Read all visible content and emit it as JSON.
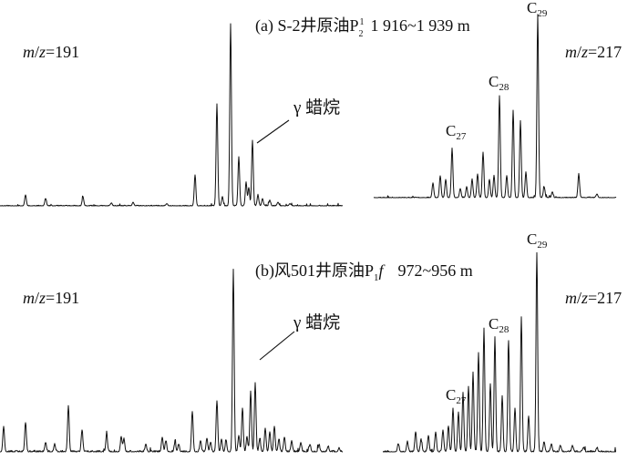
{
  "chart_data": [
    {
      "type": "line",
      "panel": "a",
      "title": "(a) S-2井原油P",
      "title_sup": "1",
      "title_sub": "2",
      "depth": "1 916~1 939 m",
      "chromatograms": [
        {
          "name": "m/z=191",
          "label": "m/z=191",
          "baseline_noise": "low",
          "peaks": [
            {
              "x": 28,
              "h": 0.06
            },
            {
              "x": 50,
              "h": 0.04
            },
            {
              "x": 91,
              "h": 0.05
            },
            {
              "x": 122,
              "h": 0.015
            },
            {
              "x": 146,
              "h": 0.02
            },
            {
              "x": 183,
              "h": 0.012
            },
            {
              "x": 214,
              "h": 0.17
            },
            {
              "x": 238,
              "h": 0.56
            },
            {
              "x": 244,
              "h": 0.05
            },
            {
              "x": 253,
              "h": 1.0
            },
            {
              "x": 262,
              "h": 0.27
            },
            {
              "x": 270,
              "h": 0.13
            },
            {
              "x": 273,
              "h": 0.1
            },
            {
              "x": 277,
              "h": 0.36,
              "label": "γ 蜡烷"
            },
            {
              "x": 283,
              "h": 0.06
            },
            {
              "x": 288,
              "h": 0.04
            },
            {
              "x": 296,
              "h": 0.03
            },
            {
              "x": 305,
              "h": 0.02
            },
            {
              "x": 318,
              "h": 0.012
            }
          ]
        },
        {
          "name": "m/z=217",
          "label": "m/z=217",
          "baseline_noise": "low",
          "peaks": [
            {
              "x": 475,
              "h": 0.08
            },
            {
              "x": 483,
              "h": 0.12
            },
            {
              "x": 489,
              "h": 0.1
            },
            {
              "x": 496,
              "h": 0.27,
              "label": "C27"
            },
            {
              "x": 505,
              "h": 0.05
            },
            {
              "x": 512,
              "h": 0.06
            },
            {
              "x": 518,
              "h": 0.1
            },
            {
              "x": 524,
              "h": 0.13
            },
            {
              "x": 530,
              "h": 0.25
            },
            {
              "x": 537,
              "h": 0.1
            },
            {
              "x": 542,
              "h": 0.12
            },
            {
              "x": 548,
              "h": 0.56,
              "label": "C28"
            },
            {
              "x": 556,
              "h": 0.12
            },
            {
              "x": 563,
              "h": 0.48
            },
            {
              "x": 571,
              "h": 0.42
            },
            {
              "x": 577,
              "h": 0.14
            },
            {
              "x": 590,
              "h": 1.0,
              "label": "C29"
            },
            {
              "x": 597,
              "h": 0.06
            },
            {
              "x": 606,
              "h": 0.03
            },
            {
              "x": 635,
              "h": 0.13
            },
            {
              "x": 655,
              "h": 0.02
            }
          ]
        }
      ]
    },
    {
      "type": "line",
      "panel": "b",
      "title": "(b)风501井原油P",
      "title_sub": "1",
      "title_italic": "f",
      "depth": "972~956 m",
      "chromatograms": [
        {
          "name": "m/z=191",
          "label": "m/z=191",
          "baseline_noise": "medium",
          "peaks": [
            {
              "x": 4,
              "h": 0.14
            },
            {
              "x": 28,
              "h": 0.16
            },
            {
              "x": 50,
              "h": 0.05
            },
            {
              "x": 60,
              "h": 0.04
            },
            {
              "x": 75,
              "h": 0.25
            },
            {
              "x": 90,
              "h": 0.12
            },
            {
              "x": 117,
              "h": 0.1
            },
            {
              "x": 133,
              "h": 0.08
            },
            {
              "x": 136,
              "h": 0.07
            },
            {
              "x": 160,
              "h": 0.04
            },
            {
              "x": 178,
              "h": 0.08
            },
            {
              "x": 182,
              "h": 0.06
            },
            {
              "x": 192,
              "h": 0.05
            },
            {
              "x": 196,
              "h": 0.04
            },
            {
              "x": 211,
              "h": 0.22
            },
            {
              "x": 220,
              "h": 0.06
            },
            {
              "x": 227,
              "h": 0.07
            },
            {
              "x": 231,
              "h": 0.05
            },
            {
              "x": 238,
              "h": 0.28
            },
            {
              "x": 243,
              "h": 0.07
            },
            {
              "x": 248,
              "h": 0.06
            },
            {
              "x": 256,
              "h": 1.0
            },
            {
              "x": 262,
              "h": 0.09
            },
            {
              "x": 266,
              "h": 0.24
            },
            {
              "x": 271,
              "h": 0.08
            },
            {
              "x": 275,
              "h": 0.33
            },
            {
              "x": 280,
              "h": 0.38,
              "label": "γ 蜡烷"
            },
            {
              "x": 285,
              "h": 0.07
            },
            {
              "x": 291,
              "h": 0.13
            },
            {
              "x": 296,
              "h": 0.11
            },
            {
              "x": 301,
              "h": 0.14
            },
            {
              "x": 306,
              "h": 0.07
            },
            {
              "x": 312,
              "h": 0.08
            },
            {
              "x": 320,
              "h": 0.06
            },
            {
              "x": 330,
              "h": 0.05
            },
            {
              "x": 340,
              "h": 0.04
            },
            {
              "x": 350,
              "h": 0.04
            },
            {
              "x": 360,
              "h": 0.03
            },
            {
              "x": 372,
              "h": 0.02
            }
          ]
        },
        {
          "name": "m/z=217",
          "label": "m/z=217",
          "baseline_noise": "medium",
          "peaks": [
            {
              "x": 437,
              "h": 0.04
            },
            {
              "x": 447,
              "h": 0.05
            },
            {
              "x": 456,
              "h": 0.1
            },
            {
              "x": 462,
              "h": 0.06
            },
            {
              "x": 470,
              "h": 0.08
            },
            {
              "x": 478,
              "h": 0.1
            },
            {
              "x": 486,
              "h": 0.11
            },
            {
              "x": 492,
              "h": 0.13
            },
            {
              "x": 497,
              "h": 0.22,
              "label": "C27"
            },
            {
              "x": 503,
              "h": 0.2
            },
            {
              "x": 508,
              "h": 0.3
            },
            {
              "x": 514,
              "h": 0.33
            },
            {
              "x": 519,
              "h": 0.4
            },
            {
              "x": 525,
              "h": 0.5
            },
            {
              "x": 531,
              "h": 0.62
            },
            {
              "x": 538,
              "h": 0.34
            },
            {
              "x": 543,
              "h": 0.58,
              "label": "C28"
            },
            {
              "x": 551,
              "h": 0.28
            },
            {
              "x": 558,
              "h": 0.56
            },
            {
              "x": 565,
              "h": 0.22
            },
            {
              "x": 572,
              "h": 0.68
            },
            {
              "x": 580,
              "h": 0.18
            },
            {
              "x": 589,
              "h": 1.0,
              "label": "C29"
            },
            {
              "x": 597,
              "h": 0.05
            },
            {
              "x": 605,
              "h": 0.04
            },
            {
              "x": 615,
              "h": 0.03
            },
            {
              "x": 628,
              "h": 0.03
            },
            {
              "x": 640,
              "h": 0.02
            },
            {
              "x": 655,
              "h": 0.02
            }
          ]
        }
      ]
    }
  ]
}
